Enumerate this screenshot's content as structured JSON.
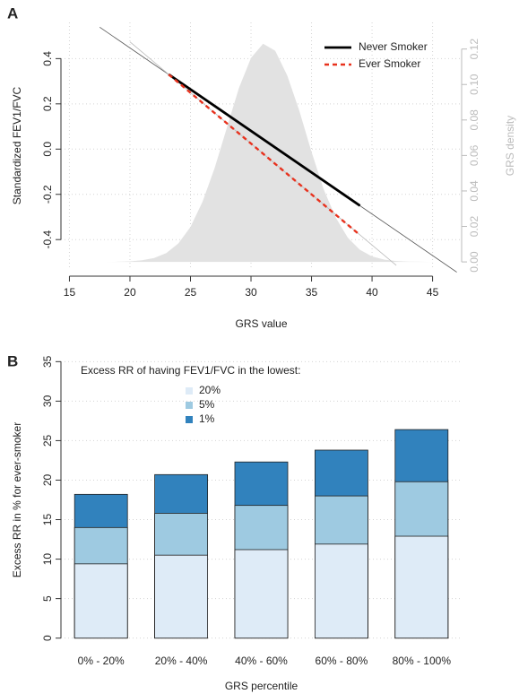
{
  "chart_data": [
    {
      "type": "line",
      "panel": "A",
      "xlabel": "GRS value",
      "ylabel": "Standardized FEV1/FVC",
      "y2label": "GRS density",
      "xlim": [
        14.3,
        47.4
      ],
      "ylim": [
        -0.53,
        0.56
      ],
      "y2lim": [
        -0.004,
        0.135
      ],
      "xticks": [
        15,
        20,
        25,
        30,
        35,
        40,
        45
      ],
      "yticks": [
        -0.4,
        -0.2,
        {
          "value": 0,
          "label": "0.0"
        },
        0.2,
        0.4
      ],
      "y2ticks": [
        {
          "value": 0,
          "label": "0.00"
        },
        {
          "value": 0.02,
          "label": "0.02"
        },
        {
          "value": 0.04,
          "label": "0.04"
        },
        {
          "value": 0.06,
          "label": "0.06"
        },
        {
          "value": 0.08,
          "label": "0.08"
        },
        {
          "value": 0.1,
          "label": "0.10"
        },
        {
          "value": 0.12,
          "label": "0.12"
        }
      ],
      "grid": true,
      "legend": "topright",
      "series": [
        {
          "axis": "y2",
          "area": true,
          "color": "#e2e2e2",
          "x": [
            17,
            18,
            19,
            20,
            21,
            22,
            23,
            24,
            25,
            26,
            27,
            28,
            29,
            30,
            31,
            32,
            33,
            34,
            35,
            36,
            37,
            38,
            39,
            40,
            41,
            42,
            43,
            44,
            45
          ],
          "values": [
            0,
            0,
            0.0001,
            0.0003,
            0.0009,
            0.0022,
            0.005,
            0.0104,
            0.0197,
            0.034,
            0.053,
            0.0755,
            0.098,
            0.115,
            0.123,
            0.119,
            0.105,
            0.085,
            0.062,
            0.041,
            0.025,
            0.0136,
            0.0068,
            0.0031,
            0.0013,
            0.0005,
            0.0002,
            0.0001,
            0
          ]
        },
        {
          "color": "#555555",
          "width": 0.8,
          "x": [
            17.5,
            47
          ],
          "values": [
            0.539,
            -0.544
          ]
        },
        {
          "color": "#bbbbbb",
          "width": 0.8,
          "x": [
            20,
            42
          ],
          "values": [
            0.474,
            -0.514
          ]
        },
        {
          "name": "Never Smoker",
          "color": "#000000",
          "width": 2.8,
          "x": [
            23.2,
            39
          ],
          "values": [
            0.33,
            -0.25
          ]
        },
        {
          "name": "Ever Smoker",
          "color": "#e8321e",
          "width": 2.4,
          "dash": true,
          "x": [
            23.2,
            39
          ],
          "values": [
            0.33,
            -0.38
          ]
        }
      ]
    },
    {
      "type": "bar",
      "panel": "B",
      "xlabel": "GRS percentile",
      "ylabel": "Excess RR in % for ever-smoker",
      "legend_title": "Excess RR of having FEV1/FVC in the lowest:",
      "categories": [
        "0% - 20%",
        "20% - 40%",
        "40% - 60%",
        "60% - 80%",
        "80% - 100%"
      ],
      "ylim": [
        -1.4,
        36.4
      ],
      "yticks": [
        0,
        5,
        10,
        15,
        20,
        25,
        30,
        35
      ],
      "grid": true,
      "series": [
        {
          "name": "20%",
          "color": "#deebf7",
          "values": [
            9.4,
            10.5,
            11.2,
            11.9,
            12.9
          ]
        },
        {
          "name": "5%",
          "color": "#9ecae1",
          "values": [
            14.0,
            15.8,
            16.8,
            18.0,
            19.8
          ]
        },
        {
          "name": "1%",
          "color": "#3182bd",
          "values": [
            18.2,
            20.7,
            22.3,
            23.8,
            26.4
          ]
        }
      ]
    }
  ]
}
